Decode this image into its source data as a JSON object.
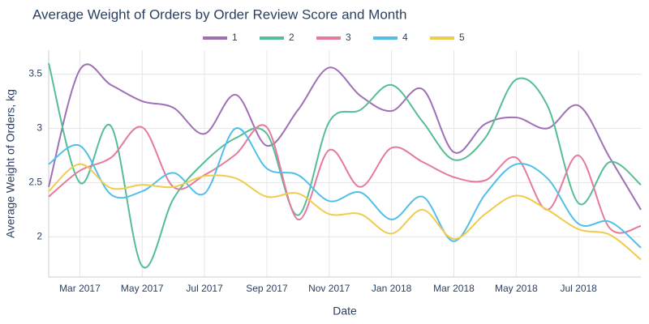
{
  "chart_data": {
    "type": "line",
    "title": "Average Weight of Orders by Order Review Score and Month",
    "xlabel": "Date",
    "ylabel": "Average Weight of Orders, kg",
    "x": [
      "2017-02",
      "2017-03",
      "2017-04",
      "2017-05",
      "2017-06",
      "2017-07",
      "2017-08",
      "2017-09",
      "2017-10",
      "2017-11",
      "2017-12",
      "2018-01",
      "2018-02",
      "2018-03",
      "2018-04",
      "2018-05",
      "2018-06",
      "2018-07",
      "2018-08",
      "2018-09"
    ],
    "xlim": [
      "2017-02",
      "2018-09"
    ],
    "xticks": [
      {
        "value": "2017-03",
        "label": "Mar 2017"
      },
      {
        "value": "2017-05",
        "label": "May 2017"
      },
      {
        "value": "2017-07",
        "label": "Jul 2017"
      },
      {
        "value": "2017-09",
        "label": "Sep 2017"
      },
      {
        "value": "2017-11",
        "label": "Nov 2017"
      },
      {
        "value": "2018-01",
        "label": "Jan 2018"
      },
      {
        "value": "2018-03",
        "label": "Mar 2018"
      },
      {
        "value": "2018-05",
        "label": "May 2018"
      },
      {
        "value": "2018-07",
        "label": "Jul 2018"
      }
    ],
    "ylim": [
      1.63,
      3.72
    ],
    "yticks": [
      2,
      2.5,
      3,
      3.5
    ],
    "grid": true,
    "series": [
      {
        "name": "1",
        "color": "#9f70b5",
        "values": [
          2.46,
          3.54,
          3.4,
          3.25,
          3.19,
          2.95,
          3.31,
          2.84,
          3.17,
          3.56,
          3.3,
          3.16,
          3.36,
          2.78,
          3.04,
          3.1,
          3.0,
          3.21,
          2.73,
          2.25
        ]
      },
      {
        "name": "2",
        "color": "#56bd94",
        "values": [
          3.6,
          2.5,
          3.02,
          1.73,
          2.35,
          2.69,
          2.91,
          2.95,
          2.2,
          3.06,
          3.17,
          3.4,
          3.06,
          2.71,
          2.91,
          3.45,
          3.21,
          2.31,
          2.69,
          2.48
        ]
      },
      {
        "name": "3",
        "color": "#e57a9c",
        "values": [
          2.37,
          2.61,
          2.73,
          3.01,
          2.46,
          2.57,
          2.76,
          3.01,
          2.16,
          2.8,
          2.46,
          2.82,
          2.69,
          2.55,
          2.52,
          2.73,
          2.25,
          2.75,
          2.08,
          2.1
        ]
      },
      {
        "name": "4",
        "color": "#52bfe9",
        "values": [
          2.67,
          2.84,
          2.39,
          2.42,
          2.59,
          2.4,
          3.0,
          2.63,
          2.57,
          2.33,
          2.41,
          2.16,
          2.37,
          1.96,
          2.39,
          2.67,
          2.54,
          2.12,
          2.14,
          1.9
        ]
      },
      {
        "name": "5",
        "color": "#f1cb4c",
        "values": [
          2.42,
          2.67,
          2.45,
          2.48,
          2.46,
          2.56,
          2.54,
          2.37,
          2.4,
          2.21,
          2.21,
          2.03,
          2.25,
          1.98,
          2.21,
          2.38,
          2.25,
          2.07,
          2.02,
          1.79
        ]
      }
    ]
  }
}
